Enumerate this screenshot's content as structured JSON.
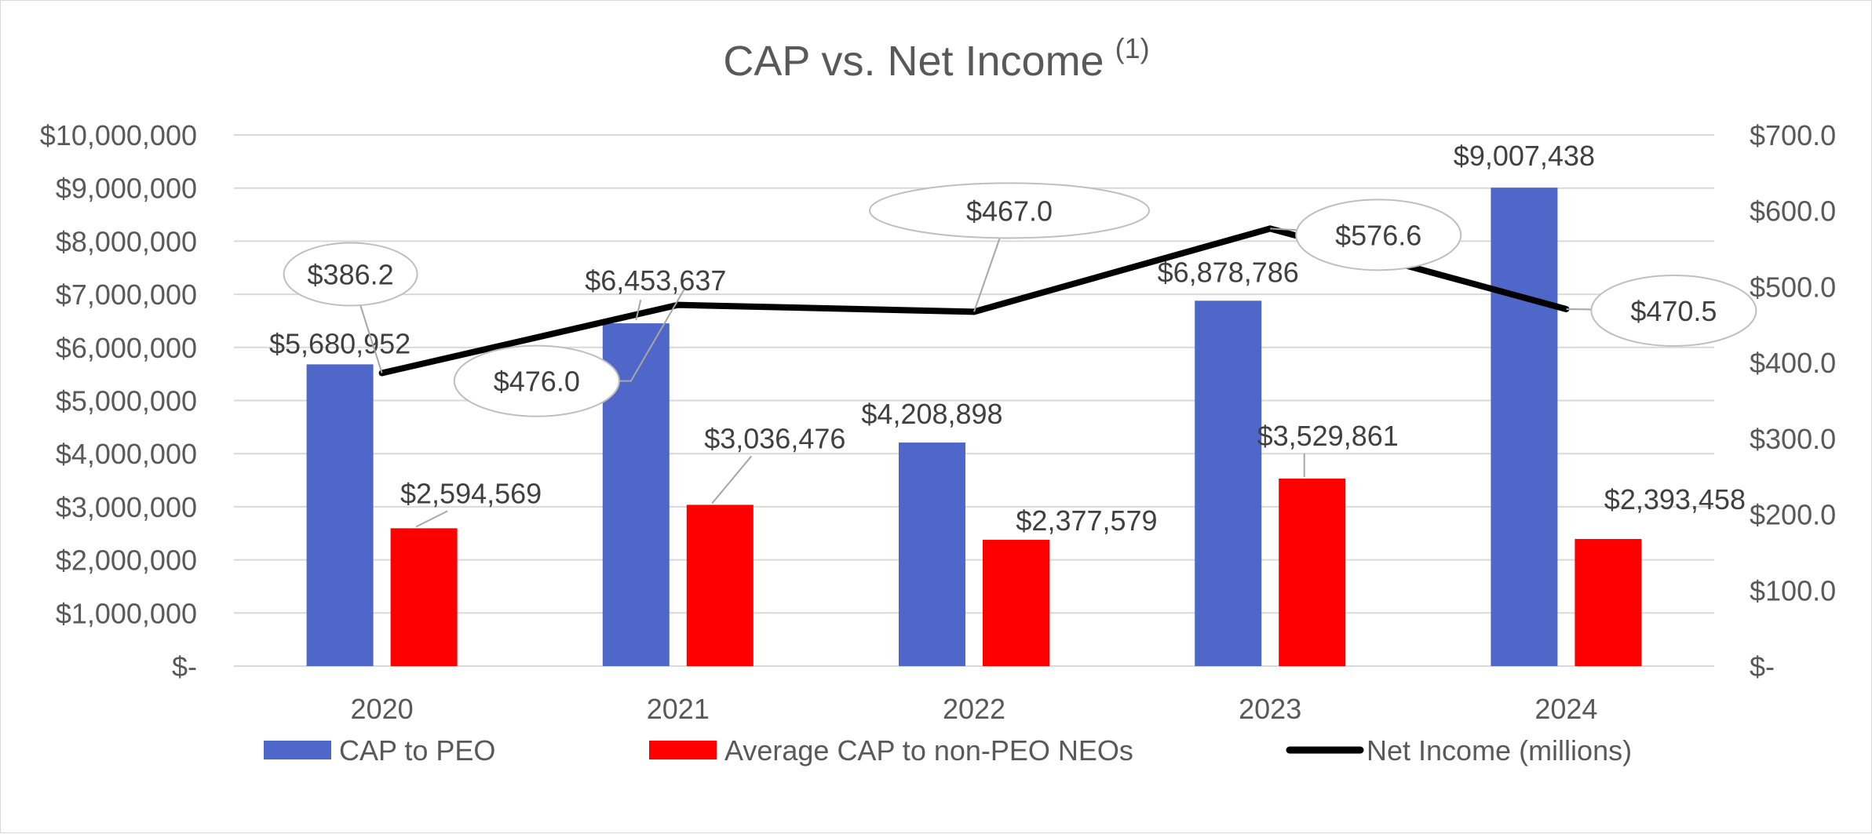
{
  "chart_data": {
    "type": "bar",
    "title": "CAP vs. Net Income",
    "title_superscript": "(1)",
    "categories": [
      "2020",
      "2021",
      "2022",
      "2023",
      "2024"
    ],
    "series": [
      {
        "name": "CAP to PEO",
        "kind": "bar",
        "axis": "left",
        "color": "#4f67c9",
        "values": [
          5680952,
          6453637,
          4208898,
          6878786,
          9007438
        ],
        "labels": [
          "$5,680,952",
          "$6,453,637",
          "$4,208,898",
          "$6,878,786",
          "$9,007,438"
        ]
      },
      {
        "name": "Average CAP to non-PEO NEOs",
        "kind": "bar",
        "axis": "left",
        "color": "#ff0000",
        "values": [
          2594569,
          3036476,
          2377579,
          3529861,
          2393458
        ],
        "labels": [
          "$2,594,569",
          "$3,036,476",
          "$2,377,579",
          "$3,529,861",
          "$2,393,458"
        ]
      },
      {
        "name": "Net Income (millions)",
        "kind": "line",
        "axis": "right",
        "color": "#000000",
        "values": [
          386.2,
          476.0,
          467.0,
          576.6,
          470.5
        ],
        "labels": [
          "$386.2",
          "$476.0",
          "$467.0",
          "$576.6",
          "$470.5"
        ]
      }
    ],
    "y_left": {
      "min": 0,
      "max": 10000000,
      "ticks": [
        "$-",
        "$1,000,000",
        "$2,000,000",
        "$3,000,000",
        "$4,000,000",
        "$5,000,000",
        "$6,000,000",
        "$7,000,000",
        "$8,000,000",
        "$9,000,000",
        "$10,000,000"
      ]
    },
    "y_right": {
      "min": 0,
      "max": 700,
      "ticks": [
        "$-",
        "$100.0",
        "$200.0",
        "$300.0",
        "$400.0",
        "$500.0",
        "$600.0",
        "$700.0"
      ]
    },
    "grid": true,
    "legend_position": "bottom"
  }
}
